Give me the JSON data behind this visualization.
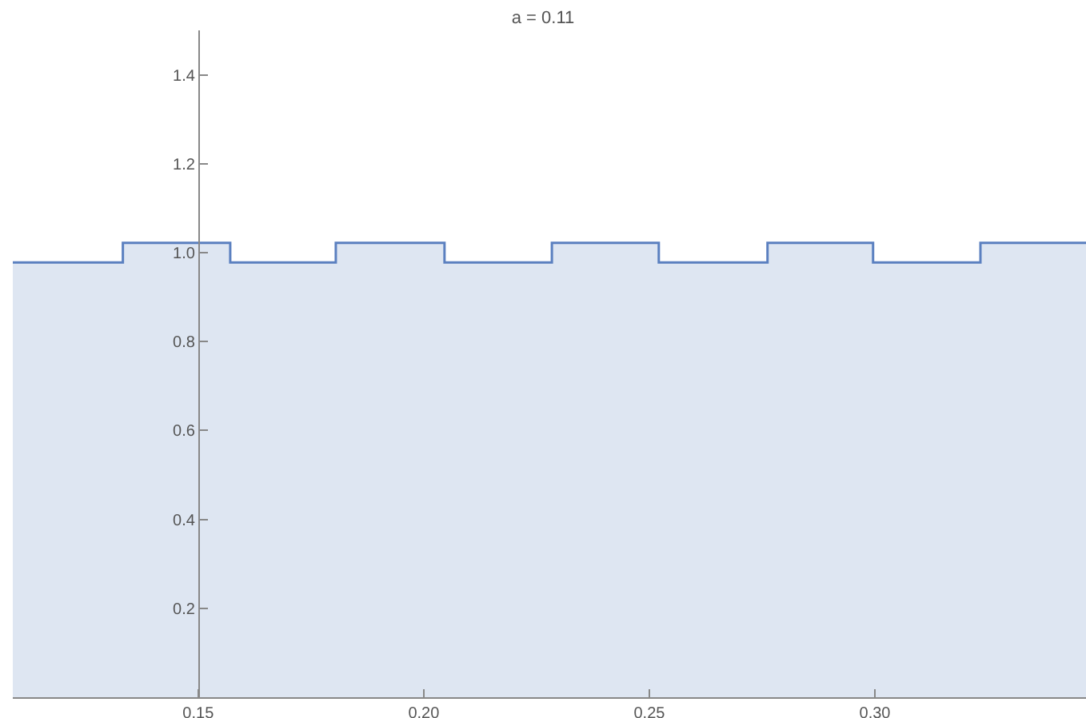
{
  "chart_data": {
    "type": "area",
    "title": "a = 0.11",
    "x": [
      0.1089,
      0.1333,
      0.1333,
      0.1571,
      0.1571,
      0.1805,
      0.1805,
      0.2046,
      0.2046,
      0.2284,
      0.2284,
      0.2521,
      0.2521,
      0.2762,
      0.2762,
      0.2996,
      0.2996,
      0.3234,
      0.3234,
      0.3468
    ],
    "series": [
      {
        "color": "#5b80c0",
        "values": [
          0.978,
          0.978,
          1.022,
          1.022,
          0.978,
          0.978,
          1.022,
          1.022,
          0.978,
          0.978,
          1.022,
          1.022,
          0.978,
          0.978,
          1.022,
          1.022,
          0.978,
          0.978,
          1.022,
          1.022
        ]
      }
    ],
    "xlim": [
      0.1089,
      0.3468
    ],
    "ylim": [
      0,
      1.5
    ],
    "xticks": [
      {
        "value": 0.15,
        "label": "0.15"
      },
      {
        "value": 0.2,
        "label": "0.20"
      },
      {
        "value": 0.25,
        "label": "0.25"
      },
      {
        "value": 0.3,
        "label": "0.30"
      }
    ],
    "yticks": [
      {
        "value": 0.2,
        "label": "0.2"
      },
      {
        "value": 0.4,
        "label": "0.4"
      },
      {
        "value": 0.6,
        "label": "0.6"
      },
      {
        "value": 0.8,
        "label": "0.8"
      },
      {
        "value": 1.0,
        "label": "1.0"
      },
      {
        "value": 1.2,
        "label": "1.2"
      },
      {
        "value": 1.4,
        "label": "1.4"
      }
    ],
    "grid": false,
    "legend": false
  }
}
